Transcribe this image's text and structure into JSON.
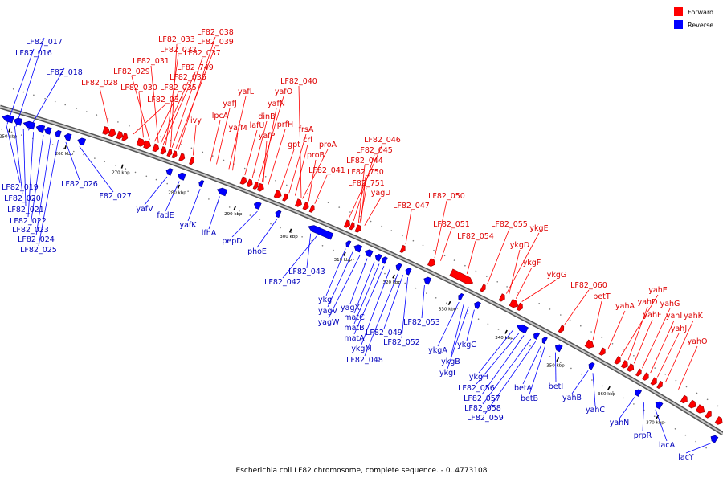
{
  "caption": "Escherichia coli LF82 chromosome, complete sequence. - 0..4773108",
  "legend": [
    {
      "label": "Forward",
      "color": "#ff0000"
    },
    {
      "label": "Reverse",
      "color": "#0000ff"
    }
  ],
  "ticks": [
    "250 kbp",
    "260 kbp",
    "270 kbp",
    "280 kbp",
    "290 kbp",
    "300 kbp",
    "310 kbp",
    "320 kbp",
    "330 kbp",
    "340 kbp",
    "350 kbp",
    "360 kbp",
    "370 kbp"
  ],
  "forward_genes": [
    "LF82_038",
    "LF82_039",
    "LF82_033",
    "LF82_037",
    "LF82_032",
    "LF82_749",
    "LF82_031",
    "LF82_036",
    "LF82_029",
    "LF82_035",
    "LF82_030",
    "LF82_028",
    "LF82_034",
    "ivy",
    "lpcA",
    "yafJ",
    "yafL",
    "yafM",
    "lafU",
    "dinB",
    "yafO",
    "yafN",
    "prfH",
    "yafP",
    "gpt",
    "frsA",
    "crl",
    "proA",
    "proB",
    "LF82_040",
    "LF82_041",
    "LF82_046",
    "LF82_045",
    "LF82_044",
    "LF82_750",
    "LF82_751",
    "yagU",
    "LF82_047",
    "LF82_050",
    "LF82_051",
    "LF82_054",
    "LF82_055",
    "ykgE",
    "ykgD",
    "ykgF",
    "ykgG",
    "LF82_060",
    "betT",
    "yahA",
    "yahE",
    "yahD",
    "yahF",
    "yahG",
    "yahI",
    "yahJ",
    "yahK",
    "yahO"
  ],
  "reverse_genes": [
    "LF82_017",
    "LF82_016",
    "LF82_018",
    "LF82_019",
    "LF82_020",
    "LF82_021",
    "LF82_022",
    "LF82_023",
    "LF82_024",
    "LF82_025",
    "LF82_026",
    "LF82_027",
    "yafV",
    "fadE",
    "yafK",
    "lfhA",
    "pepD",
    "phoE",
    "LF82_043",
    "LF82_042",
    "ykgI",
    "yagV",
    "yagW",
    "yagX",
    "matC",
    "matB",
    "matA",
    "ykgM",
    "LF82_048",
    "LF82_049",
    "LF82_052",
    "LF82_053",
    "ykgA",
    "ykgB",
    "ykgI",
    "ykgC",
    "ykgH",
    "LF82_056",
    "LF82_057",
    "LF82_058",
    "LF82_059",
    "betA",
    "betB",
    "betI",
    "yahB",
    "yahC",
    "yahN",
    "prpR",
    "lacA",
    "lacY"
  ]
}
